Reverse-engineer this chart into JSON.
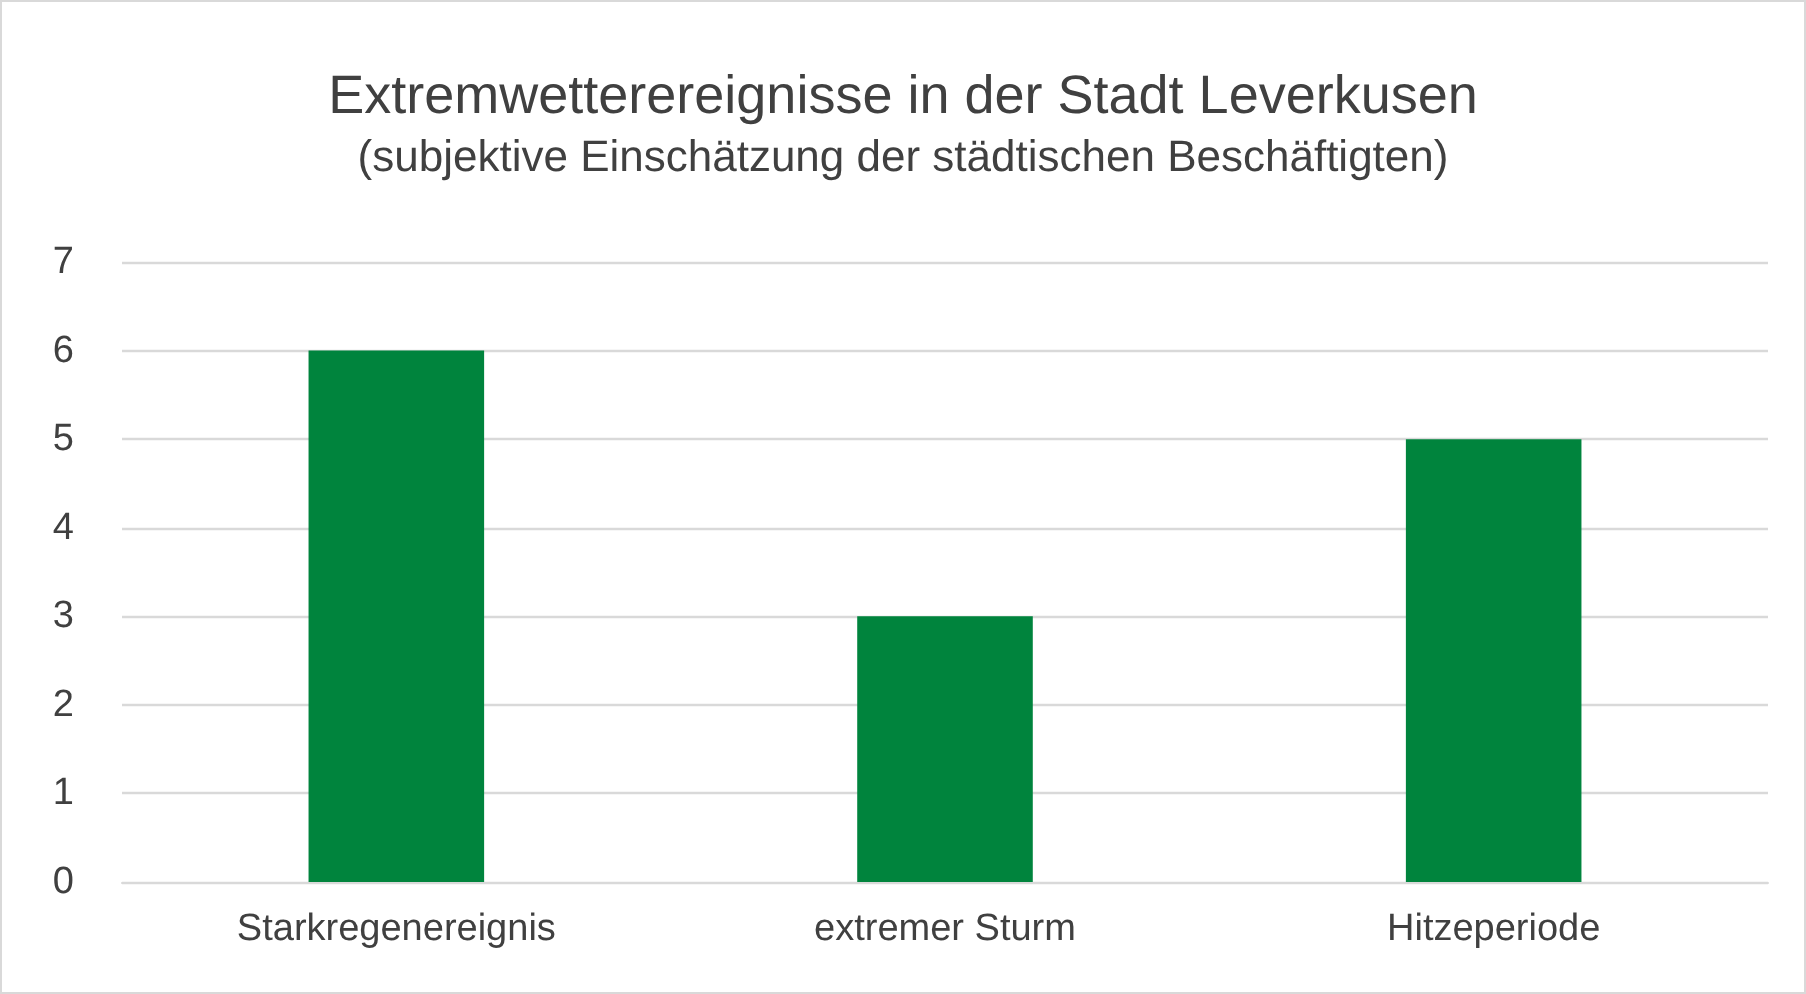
{
  "chart_data": {
    "type": "bar",
    "title": "Extremwetterereignisse in der Stadt Leverkusen",
    "subtitle": "(subjektive Einschätzung der städtischen Beschäftigten)",
    "categories": [
      "Starkregenereignis",
      "extremer Sturm",
      "Hitzeperiode"
    ],
    "values": [
      6,
      3,
      5
    ],
    "color": "#00843d",
    "ylim": [
      0,
      7
    ],
    "yticks": [
      0,
      1,
      2,
      3,
      4,
      5,
      6,
      7
    ],
    "grid": "y"
  }
}
